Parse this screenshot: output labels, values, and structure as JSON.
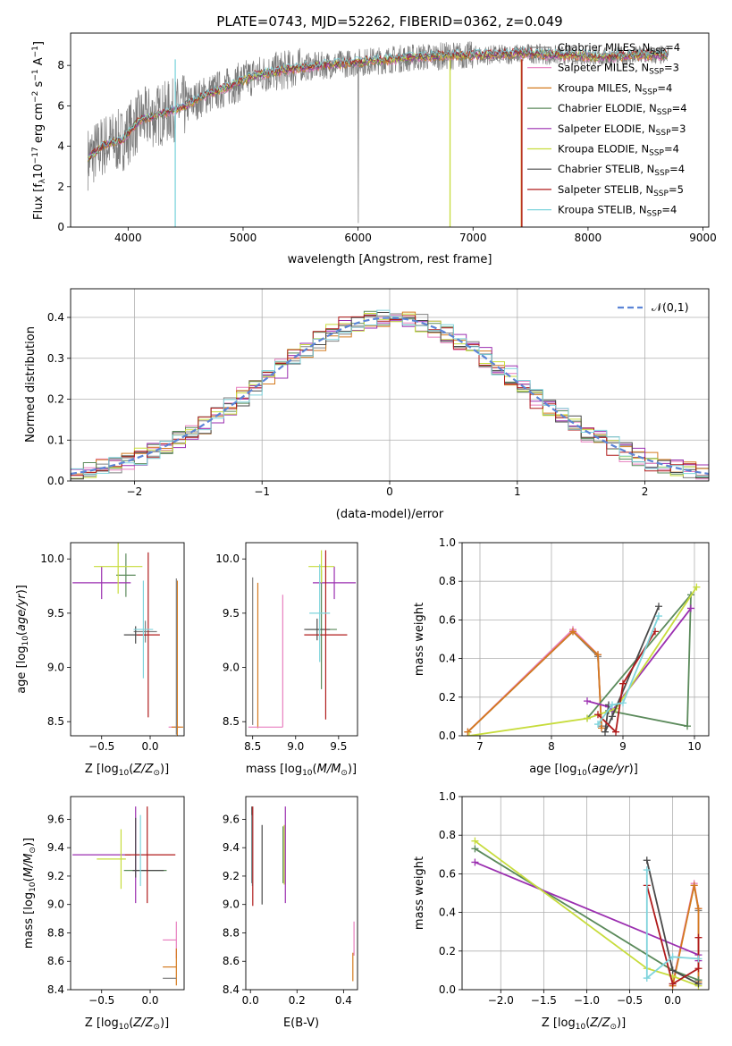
{
  "colors": {
    "Chabrier MILES": "#808080",
    "Salpeter MILES": "#e87fbf",
    "Kroupa MILES": "#d47a1e",
    "Chabrier ELODIE": "#5b8a5b",
    "Salpeter ELODIE": "#9b2fb0",
    "Kroupa ELODIE": "#c7dc3c",
    "Chabrier STELIB": "#4a4a4a",
    "Salpeter STELIB": "#b01c1c",
    "Kroupa STELIB": "#7fd4dc",
    "normal": "#5b84d6",
    "flux_grey": "#7a7a7a"
  },
  "chart_data": [
    {
      "id": "spectrum",
      "type": "line",
      "title": "PLATE=0743, MJD=52262, FIBERID=0362, z=0.049",
      "xlabel": "wavelength [Angstrom, rest frame]",
      "ylabel": "Flux [f_λ 10^-17 erg cm^-2 s^-1 A^-1]",
      "xlim": [
        3500,
        9050
      ],
      "ylim": [
        0,
        9.6
      ],
      "xticks": [
        4000,
        5000,
        6000,
        7000,
        8000,
        9000
      ],
      "yticks": [
        0,
        2,
        4,
        6,
        8
      ],
      "grid": false,
      "legend_position": "right",
      "data_range": [
        3650,
        8700
      ],
      "continuum": {
        "x": [
          3650,
          3800,
          3950,
          4100,
          4300,
          4500,
          4700,
          4900,
          5100,
          5300,
          5500,
          5700,
          5900,
          6100,
          6300,
          6500,
          6700,
          6900,
          7100,
          7300,
          7500,
          7700,
          7900,
          8100,
          8300,
          8500,
          8700
        ],
        "y": [
          3.4,
          4.1,
          4.3,
          5.3,
          5.6,
          6.0,
          6.6,
          7.0,
          7.5,
          7.7,
          7.9,
          8.0,
          8.1,
          8.2,
          8.3,
          8.4,
          8.45,
          8.5,
          8.5,
          8.55,
          8.6,
          8.5,
          8.5,
          8.4,
          8.45,
          8.5,
          8.5
        ]
      },
      "legend": [
        {
          "label": "Chabrier MILES",
          "nssp": "4"
        },
        {
          "label": "Salpeter MILES",
          "nssp": "3"
        },
        {
          "label": "Kroupa MILES",
          "nssp": "4"
        },
        {
          "label": "Chabrier ELODIE",
          "nssp": "4"
        },
        {
          "label": "Salpeter ELODIE",
          "nssp": "3"
        },
        {
          "label": "Kroupa ELODIE",
          "nssp": "4"
        },
        {
          "label": "Chabrier STELIB",
          "nssp": "4"
        },
        {
          "label": "Salpeter STELIB",
          "nssp": "5"
        },
        {
          "label": "Kroupa STELIB",
          "nssp": "4"
        }
      ]
    },
    {
      "id": "residuals",
      "type": "line",
      "xlabel": "(data-model)/error",
      "ylabel": "Normed distribution",
      "xlim": [
        -2.5,
        2.5
      ],
      "ylim": [
        0,
        0.47
      ],
      "xticks": [
        -2,
        -1,
        0,
        1,
        2
      ],
      "yticks": [
        0.0,
        0.1,
        0.2,
        0.3,
        0.4
      ],
      "grid": true,
      "legend": [
        "𝒩(0,1)"
      ],
      "bin_width": 0.1,
      "series": [
        {
          "name": "Chabrier MILES",
          "offset": 0.0
        },
        {
          "name": "Salpeter MILES",
          "offset": 0.02
        },
        {
          "name": "Kroupa MILES",
          "offset": -0.01
        },
        {
          "name": "Chabrier ELODIE",
          "offset": 0.015
        },
        {
          "name": "Salpeter ELODIE",
          "offset": -0.02
        },
        {
          "name": "Kroupa ELODIE",
          "offset": 0.01
        },
        {
          "name": "Chabrier STELIB",
          "offset": -0.015
        },
        {
          "name": "Salpeter STELIB",
          "offset": 0.025
        },
        {
          "name": "Kroupa STELIB",
          "offset": -0.005
        }
      ]
    },
    {
      "id": "age_vs_Z",
      "type": "scatter",
      "xlabel": "Z [log10(Z/Z☉)]",
      "ylabel": "age  [log10(age/yr)]",
      "xlim": [
        -0.82,
        0.35
      ],
      "ylim": [
        8.37,
        10.15
      ],
      "xticks": [
        -0.5,
        0.0
      ],
      "xticklabels": [
        "−0.5",
        "0.0"
      ],
      "yticks": [
        8.5,
        9.0,
        9.5,
        10.0
      ],
      "errorbars": [
        {
          "series": "Chabrier MILES",
          "x": -0.05,
          "xerr": 0.12,
          "y": 9.33,
          "yerr": 0.1
        },
        {
          "series": "Salpeter MILES",
          "x": 0.25,
          "xerr": 0.06,
          "y": 8.45,
          "yerr": 0.0
        },
        {
          "series": "Kroupa MILES",
          "x": 0.28,
          "xerr": 0.06,
          "y": 8.45,
          "yerr": 1.35
        },
        {
          "series": "Chabrier ELODIE",
          "x": -0.25,
          "xerr": 0.1,
          "y": 9.85,
          "yerr": 0.2
        },
        {
          "series": "Salpeter ELODIE",
          "x": -0.5,
          "xerr": 0.3,
          "y": 9.78,
          "yerr": 0.15
        },
        {
          "series": "Kroupa ELODIE",
          "x": -0.33,
          "xerr": 0.25,
          "y": 9.93,
          "yerr": 0.25
        },
        {
          "series": "Chabrier STELIB",
          "x": -0.15,
          "xerr": 0.12,
          "y": 9.3,
          "yerr": 0.08
        },
        {
          "series": "Salpeter STELIB",
          "x": -0.02,
          "xerr": 0.12,
          "y": 9.3,
          "yerr": 0.76
        },
        {
          "series": "Kroupa STELIB",
          "x": -0.07,
          "xerr": 0.1,
          "y": 9.35,
          "yerr": 0.45
        },
        {
          "series": "Chabrier MILES",
          "x": 0.27,
          "xerr": 0.0,
          "y": 9.1,
          "yerr": 0.72
        }
      ]
    },
    {
      "id": "age_vs_mass",
      "type": "scatter",
      "xlabel": "mass [log10(M/M☉)]",
      "xlim": [
        8.42,
        9.72
      ],
      "ylim": [
        8.37,
        10.15
      ],
      "xticks": [
        8.5,
        9.0,
        9.5
      ],
      "yticks": [
        8.5,
        9.0,
        9.5,
        10.0
      ],
      "errorbars": [
        {
          "series": "Salpeter MILES",
          "x": 8.85,
          "xerr": 0.0,
          "y": 9.06,
          "yerr": 0.61
        },
        {
          "series": "Kroupa MILES",
          "x": 8.56,
          "xerr": 0.0,
          "y": 9.11,
          "yerr": 0.67
        },
        {
          "series": "Chabrier MILES",
          "x": 8.5,
          "xerr": 0.0,
          "y": 9.15,
          "yerr": 0.68
        },
        {
          "series": "Salpeter MILES",
          "x": 8.65,
          "xerr": 0.2,
          "y": 8.45,
          "yerr": 0.0
        },
        {
          "series": "Chabrier ELODIE",
          "x": 9.3,
          "xerr": 0.18,
          "y": 9.35,
          "yerr": 0.55
        },
        {
          "series": "Salpeter ELODIE",
          "x": 9.45,
          "xerr": 0.25,
          "y": 9.78,
          "yerr": 0.15
        },
        {
          "series": "Kroupa ELODIE",
          "x": 9.3,
          "xerr": 0.15,
          "y": 9.93,
          "yerr": 0.15
        },
        {
          "series": "Chabrier STELIB",
          "x": 9.25,
          "xerr": 0.15,
          "y": 9.35,
          "yerr": 0.1
        },
        {
          "series": "Salpeter STELIB",
          "x": 9.35,
          "xerr": 0.25,
          "y": 9.3,
          "yerr": 0.78
        },
        {
          "series": "Kroupa STELIB",
          "x": 9.28,
          "xerr": 0.12,
          "y": 9.5,
          "yerr": 0.45
        }
      ]
    },
    {
      "id": "mass_weight_vs_age",
      "type": "line",
      "xlabel": "age  [log10(age/yr)]",
      "ylabel": "mass weight",
      "xlim": [
        6.75,
        10.2
      ],
      "ylim": [
        0,
        1.0
      ],
      "xticks": [
        7,
        8,
        9,
        10
      ],
      "yticks": [
        0.0,
        0.2,
        0.4,
        0.6,
        0.8,
        1.0
      ],
      "grid": true,
      "series": [
        {
          "name": "Chabrier MILES",
          "x": [
            6.83,
            8.3,
            8.65,
            8.7
          ],
          "y": [
            0.02,
            0.54,
            0.41,
            0.05
          ]
        },
        {
          "name": "Salpeter MILES",
          "x": [
            6.83,
            8.3,
            8.65,
            8.7
          ],
          "y": [
            0.02,
            0.55,
            0.42,
            0.04
          ]
        },
        {
          "name": "Kroupa MILES",
          "x": [
            6.83,
            8.3,
            8.65,
            8.7
          ],
          "y": [
            0.02,
            0.54,
            0.42,
            0.04
          ]
        },
        {
          "name": "Chabrier ELODIE",
          "x": [
            8.8,
            9.9,
            9.95,
            8.5
          ],
          "y": [
            0.13,
            0.05,
            0.73,
            0.09
          ]
        },
        {
          "name": "Salpeter ELODIE",
          "x": [
            8.5,
            8.8,
            8.85,
            9.95
          ],
          "y": [
            0.18,
            0.15,
            0.13,
            0.66
          ]
        },
        {
          "name": "Kroupa ELODIE",
          "x": [
            6.85,
            8.5,
            8.9,
            10.03
          ],
          "y": [
            0.0,
            0.09,
            0.14,
            0.77
          ]
        },
        {
          "name": "Chabrier STELIB",
          "x": [
            8.8,
            8.75,
            8.85,
            9.5
          ],
          "y": [
            0.16,
            0.02,
            0.1,
            0.67
          ]
        },
        {
          "name": "Salpeter STELIB",
          "x": [
            8.65,
            8.9,
            9.0,
            9.45
          ],
          "y": [
            0.11,
            0.02,
            0.27,
            0.54
          ]
        },
        {
          "name": "Kroupa STELIB",
          "x": [
            8.65,
            8.85,
            9.0,
            9.5
          ],
          "y": [
            0.06,
            0.16,
            0.17,
            0.62
          ]
        }
      ]
    },
    {
      "id": "mass_vs_Z",
      "type": "scatter",
      "xlabel": "Z [log10(Z/Z☉)]",
      "ylabel": "mass [log10(M/M☉)]",
      "xlim": [
        -0.82,
        0.35
      ],
      "ylim": [
        8.4,
        9.76
      ],
      "xticks": [
        -0.5,
        0.0
      ],
      "xticklabels": [
        "−0.5",
        "0.0"
      ],
      "yticks": [
        8.4,
        8.6,
        8.8,
        9.0,
        9.2,
        9.4,
        9.6
      ],
      "errorbars": [
        {
          "series": "Salpeter MILES",
          "x": 0.2,
          "xerr": 0.07,
          "y": 8.75,
          "yerr": 0.0
        },
        {
          "series": "Salpeter MILES",
          "x": 0.27,
          "xerr": 0.0,
          "y": 8.75,
          "yerr": 0.13
        },
        {
          "series": "Kroupa MILES",
          "x": 0.2,
          "xerr": 0.07,
          "y": 8.56,
          "yerr": 0.0
        },
        {
          "series": "Kroupa MILES",
          "x": 0.27,
          "xerr": 0.0,
          "y": 8.56,
          "yerr": 0.13
        },
        {
          "series": "Chabrier MILES",
          "x": 0.2,
          "xerr": 0.07,
          "y": 8.48,
          "yerr": 0.0
        },
        {
          "series": "Chabrier ELODIE",
          "x": -0.05,
          "xerr": 0.22,
          "y": 9.24,
          "yerr": 0.0
        },
        {
          "series": "Salpeter ELODIE",
          "x": -0.5,
          "xerr": 0.3,
          "y": 9.35,
          "yerr": 0.0
        },
        {
          "series": "Salpeter ELODIE",
          "x": -0.15,
          "xerr": 0.0,
          "y": 9.35,
          "yerr": 0.34
        },
        {
          "series": "Kroupa ELODIE",
          "x": -0.4,
          "xerr": 0.15,
          "y": 9.32,
          "yerr": 0.0
        },
        {
          "series": "Kroupa ELODIE",
          "x": -0.3,
          "xerr": 0.0,
          "y": 9.32,
          "yerr": 0.21
        },
        {
          "series": "Chabrier STELIB",
          "x": -0.15,
          "xerr": 0.0,
          "y": 9.4,
          "yerr": 0.21
        },
        {
          "series": "Chabrier STELIB",
          "x": -0.02,
          "xerr": 0.16,
          "y": 9.24,
          "yerr": 0.0
        },
        {
          "series": "Salpeter STELIB",
          "x": -0.03,
          "xerr": 0.0,
          "y": 9.35,
          "yerr": 0.34
        },
        {
          "series": "Salpeter STELIB",
          "x": 0.0,
          "xerr": 0.26,
          "y": 9.35,
          "yerr": 0.0
        },
        {
          "series": "Kroupa STELIB",
          "x": -0.1,
          "xerr": 0.0,
          "y": 9.38,
          "yerr": 0.25
        }
      ]
    },
    {
      "id": "mass_vs_ebv",
      "type": "scatter",
      "xlabel": "E(B-V)",
      "xlim": [
        -0.02,
        0.46
      ],
      "ylim": [
        8.4,
        9.76
      ],
      "xticks": [
        0.0,
        0.2,
        0.4
      ],
      "yticks": [
        8.4,
        8.6,
        8.8,
        9.0,
        9.2,
        9.4,
        9.6
      ],
      "errorbars": [
        {
          "series": "Chabrier STELIB",
          "x": 0.006,
          "yerr": 0.27,
          "y": 9.42
        },
        {
          "series": "Kroupa STELIB",
          "x": 0.008,
          "yerr": 0.25,
          "y": 9.38
        },
        {
          "series": "Salpeter STELIB",
          "x": 0.01,
          "yerr": 0.35,
          "y": 9.34
        },
        {
          "series": "Chabrier STELIB",
          "x": 0.05,
          "yerr": 0.28,
          "y": 9.28
        },
        {
          "series": "Chabrier ELODIE",
          "x": 0.14,
          "yerr": 0.2,
          "y": 9.35
        },
        {
          "series": "Kroupa ELODIE",
          "x": 0.145,
          "yerr": 0.21,
          "y": 9.35
        },
        {
          "series": "Salpeter ELODIE",
          "x": 0.15,
          "yerr": 0.34,
          "y": 9.35
        },
        {
          "series": "Salpeter MILES",
          "x": 0.445,
          "yerr": 0.12,
          "y": 8.76
        },
        {
          "series": "Kroupa MILES",
          "x": 0.44,
          "yerr": 0.1,
          "y": 8.56
        }
      ]
    },
    {
      "id": "mass_weight_vs_Z",
      "type": "line",
      "xlabel": "Z [log10(Z/Z☉)]",
      "ylabel": "mass weight",
      "xlim": [
        -2.45,
        0.42
      ],
      "ylim": [
        0,
        1.0
      ],
      "xticks": [
        -2.0,
        -1.5,
        -1.0,
        -0.5,
        0.0
      ],
      "xticklabels": [
        "−2.0",
        "−1.5",
        "−1.0",
        "−0.5",
        "0.0"
      ],
      "yticks": [
        0.0,
        0.2,
        0.4,
        0.6,
        0.8,
        1.0
      ],
      "grid": true,
      "series": [
        {
          "name": "Chabrier MILES",
          "x": [
            0.0,
            0.25,
            0.3,
            0.3
          ],
          "y": [
            0.03,
            0.54,
            0.41,
            0.04
          ]
        },
        {
          "name": "Salpeter MILES",
          "x": [
            0.0,
            0.25,
            0.3,
            0.3
          ],
          "y": [
            0.03,
            0.55,
            0.42,
            0.04
          ]
        },
        {
          "name": "Kroupa MILES",
          "x": [
            0.0,
            0.25,
            0.3,
            0.3
          ],
          "y": [
            0.02,
            0.54,
            0.42,
            0.04
          ]
        },
        {
          "name": "Chabrier ELODIE",
          "x": [
            -2.3,
            0.0,
            0.3
          ],
          "y": [
            0.73,
            0.1,
            0.05
          ]
        },
        {
          "name": "Salpeter ELODIE",
          "x": [
            -2.3,
            0.3,
            0.3
          ],
          "y": [
            0.66,
            0.18,
            0.15
          ]
        },
        {
          "name": "Kroupa ELODIE",
          "x": [
            -2.3,
            -0.3,
            0.0,
            0.3
          ],
          "y": [
            0.77,
            0.11,
            0.07,
            0.02
          ]
        },
        {
          "name": "Chabrier STELIB",
          "x": [
            -0.3,
            0.0,
            0.3
          ],
          "y": [
            0.67,
            0.1,
            0.03
          ]
        },
        {
          "name": "Salpeter STELIB",
          "x": [
            -0.3,
            0.0,
            0.3,
            0.3
          ],
          "y": [
            0.54,
            0.03,
            0.11,
            0.27
          ]
        },
        {
          "name": "Kroupa STELIB",
          "x": [
            -0.3,
            -0.3,
            0.0,
            0.3
          ],
          "y": [
            0.62,
            0.06,
            0.17,
            0.16
          ]
        }
      ]
    }
  ]
}
